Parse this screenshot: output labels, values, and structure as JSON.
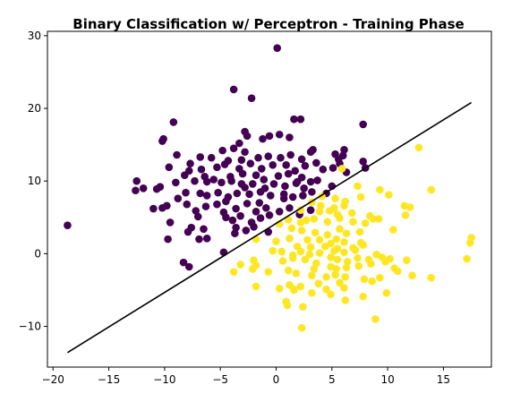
{
  "chart_data": {
    "type": "scatter",
    "title": "Binary Classification w/ Perceptron - Training Phase",
    "xlabel": "",
    "ylabel": "",
    "xlim": [
      -20.5,
      19.3
    ],
    "ylim": [
      -15.6,
      30.6
    ],
    "xticks": [
      -20,
      -15,
      -10,
      -5,
      0,
      5,
      10,
      15
    ],
    "yticks": [
      -10,
      0,
      10,
      20,
      30
    ],
    "grid": false,
    "legend": "none",
    "colors": {
      "class_0": "#440154",
      "class_1": "#fde725",
      "boundary": "#000000"
    },
    "decision_boundary": {
      "x": [
        -18.7,
        17.5
      ],
      "y": [
        -13.6,
        20.8
      ]
    },
    "series": [
      {
        "class": 0,
        "points": [
          [
            -18.7,
            3.9
          ],
          [
            0.1,
            28.3
          ],
          [
            -3.8,
            22.6
          ],
          [
            -2.2,
            21.4
          ],
          [
            1.6,
            18.5
          ],
          [
            2.2,
            18.5
          ],
          [
            7.8,
            17.8
          ],
          [
            -9.2,
            18.1
          ],
          [
            -10.2,
            15.5
          ],
          [
            -10.1,
            15.8
          ],
          [
            -2.8,
            16.8
          ],
          [
            -2.6,
            16.2
          ],
          [
            -1.2,
            15.8
          ],
          [
            -0.6,
            16.2
          ],
          [
            0.3,
            16.4
          ],
          [
            1.2,
            16.0
          ],
          [
            -3.3,
            15.2
          ],
          [
            -4.8,
            14.2
          ],
          [
            -3.8,
            14.5
          ],
          [
            -2.8,
            14.0
          ],
          [
            -8.9,
            13.6
          ],
          [
            -6.8,
            13.3
          ],
          [
            -5.8,
            13.2
          ],
          [
            -4.3,
            12.8
          ],
          [
            -3.1,
            12.9
          ],
          [
            -1.6,
            13.2
          ],
          [
            -0.7,
            13.4
          ],
          [
            0.4,
            13.2
          ],
          [
            1.3,
            13.6
          ],
          [
            2.3,
            13.0
          ],
          [
            3.1,
            14.0
          ],
          [
            3.3,
            14.3
          ],
          [
            5.6,
            13.0
          ],
          [
            6.1,
            14.3
          ],
          [
            5.3,
            13.7
          ],
          [
            6.0,
            13.5
          ],
          [
            -9.6,
            11.9
          ],
          [
            -7.7,
            12.4
          ],
          [
            -6.7,
            11.6
          ],
          [
            -5.3,
            11.9
          ],
          [
            -4.6,
            12.3
          ],
          [
            -3.3,
            11.7
          ],
          [
            -2.3,
            12.4
          ],
          [
            -1.3,
            11.7
          ],
          [
            -0.3,
            12.2
          ],
          [
            0.9,
            12.2
          ],
          [
            1.7,
            11.4
          ],
          [
            2.6,
            12.1
          ],
          [
            3.6,
            12.5
          ],
          [
            4.2,
            11.6
          ],
          [
            5.1,
            11.8
          ],
          [
            5.7,
            12.4
          ],
          [
            6.3,
            11.2
          ],
          [
            7.8,
            12.7
          ],
          [
            8.0,
            11.8
          ],
          [
            -7.8,
            11.4
          ],
          [
            -6.4,
            10.6
          ],
          [
            -4.1,
            10.6
          ],
          [
            -3.0,
            11.0
          ],
          [
            -1.8,
            10.8
          ],
          [
            -1.1,
            10.2
          ],
          [
            0.2,
            10.7
          ],
          [
            1.1,
            11.0
          ],
          [
            2.3,
            10.5
          ],
          [
            3.1,
            9.9
          ],
          [
            -8.2,
            10.8
          ],
          [
            -7.3,
            10.0
          ],
          [
            -6.2,
            9.9
          ],
          [
            -5.6,
            10.2
          ],
          [
            -4.9,
            9.8
          ],
          [
            -4.0,
            10.0
          ],
          [
            -3.1,
            9.6
          ],
          [
            -2.1,
            9.6
          ],
          [
            -1.0,
            9.0
          ],
          [
            -0.2,
            9.6
          ],
          [
            0.8,
            9.3
          ],
          [
            1.8,
            9.7
          ],
          [
            2.5,
            9.0
          ],
          [
            3.7,
            10.1
          ],
          [
            5.0,
            9.3
          ],
          [
            -11.9,
            9.0
          ],
          [
            -12.6,
            8.7
          ],
          [
            -12.5,
            10.0
          ],
          [
            -10.7,
            8.9
          ],
          [
            -10.4,
            9.2
          ],
          [
            -9.0,
            9.8
          ],
          [
            -8.1,
            8.4
          ],
          [
            -6.8,
            8.3
          ],
          [
            -6.2,
            8.0
          ],
          [
            -5.2,
            8.4
          ],
          [
            -4.3,
            7.8
          ],
          [
            -3.5,
            8.3
          ],
          [
            -2.4,
            8.2
          ],
          [
            -1.4,
            8.5
          ],
          [
            -0.5,
            8.0
          ],
          [
            0.7,
            8.2
          ],
          [
            1.5,
            7.8
          ],
          [
            2.4,
            8.0
          ],
          [
            3.2,
            8.5
          ],
          [
            4.5,
            8.3
          ],
          [
            -11.0,
            6.2
          ],
          [
            -10.2,
            6.3
          ],
          [
            -9.8,
            6.6
          ],
          [
            -8.0,
            6.8
          ],
          [
            -7.2,
            5.9
          ],
          [
            -6.3,
            6.5
          ],
          [
            -5.3,
            6.8
          ],
          [
            -4.7,
            5.7
          ],
          [
            -3.6,
            6.2
          ],
          [
            -2.6,
            6.9
          ],
          [
            -1.8,
            5.8
          ],
          [
            -0.9,
            6.3
          ],
          [
            0.3,
            5.8
          ],
          [
            1.2,
            6.3
          ],
          [
            2.1,
            5.4
          ],
          [
            3.1,
            6.0
          ],
          [
            -7.0,
            5.1
          ],
          [
            -4.5,
            5.0
          ],
          [
            -3.9,
            4.6
          ],
          [
            -3.2,
            5.2
          ],
          [
            -2.2,
            4.3
          ],
          [
            -1.4,
            4.9
          ],
          [
            -0.6,
            5.3
          ],
          [
            -9.5,
            4.3
          ],
          [
            -7.6,
            3.6
          ],
          [
            -6.5,
            3.4
          ],
          [
            -3.6,
            3.6
          ],
          [
            -2.0,
            3.7
          ],
          [
            -0.7,
            3.0
          ],
          [
            -9.7,
            2.0
          ],
          [
            -7.9,
            3.0
          ],
          [
            -6.9,
            2.0
          ],
          [
            -6.2,
            2.1
          ],
          [
            -3.7,
            2.8
          ],
          [
            -4.7,
            0.2
          ],
          [
            -2.7,
            3.2
          ],
          [
            -8.3,
            -1.2
          ],
          [
            -7.8,
            -1.8
          ],
          [
            -8.8,
            7.6
          ],
          [
            -4.5,
            7.2
          ],
          [
            -1.5,
            7.0
          ],
          [
            0.7,
            7.6
          ],
          [
            -2.8,
            9.1
          ],
          [
            1.9,
            9.9
          ]
        ]
      },
      {
        "class": 1,
        "points": [
          [
            12.8,
            14.6
          ],
          [
            5.9,
            11.7
          ],
          [
            7.3,
            9.3
          ],
          [
            9.3,
            8.8
          ],
          [
            10.1,
            8.1
          ],
          [
            13.9,
            8.8
          ],
          [
            4.1,
            7.9
          ],
          [
            5.3,
            7.6
          ],
          [
            6.2,
            7.2
          ],
          [
            7.6,
            7.8
          ],
          [
            3.2,
            7.1
          ],
          [
            4.0,
            6.6
          ],
          [
            5.2,
            6.3
          ],
          [
            6.1,
            6.6
          ],
          [
            11.5,
            6.6
          ],
          [
            12.0,
            6.4
          ],
          [
            2.2,
            6.0
          ],
          [
            3.9,
            5.8
          ],
          [
            5.5,
            5.4
          ],
          [
            6.8,
            5.6
          ],
          [
            8.4,
            5.2
          ],
          [
            9.2,
            4.8
          ],
          [
            11.6,
            5.3
          ],
          [
            1.1,
            4.7
          ],
          [
            2.2,
            4.3
          ],
          [
            3.4,
            4.8
          ],
          [
            4.6,
            4.4
          ],
          [
            5.7,
            4.9
          ],
          [
            6.9,
            4.4
          ],
          [
            8.0,
            4.2
          ],
          [
            8.7,
            4.8
          ],
          [
            0.3,
            4.1
          ],
          [
            1.4,
            3.5
          ],
          [
            2.3,
            3.2
          ],
          [
            3.5,
            2.9
          ],
          [
            4.6,
            2.6
          ],
          [
            5.7,
            3.4
          ],
          [
            6.3,
            2.8
          ],
          [
            7.5,
            3.0
          ],
          [
            10.5,
            3.3
          ],
          [
            -1.8,
            2.0
          ],
          [
            1.2,
            2.1
          ],
          [
            2.8,
            1.9
          ],
          [
            3.9,
            1.9
          ],
          [
            4.9,
            1.4
          ],
          [
            5.4,
            2.0
          ],
          [
            6.1,
            1.6
          ],
          [
            7.6,
            1.5
          ],
          [
            17.5,
            2.2
          ],
          [
            17.4,
            1.5
          ],
          [
            0.0,
            1.7
          ],
          [
            1.9,
            1.0
          ],
          [
            3.1,
            0.9
          ],
          [
            4.4,
            1.0
          ],
          [
            5.5,
            0.7
          ],
          [
            6.9,
            0.8
          ],
          [
            7.8,
            1.2
          ],
          [
            -0.3,
            0.4
          ],
          [
            0.5,
            0.3
          ],
          [
            1.5,
            -0.2
          ],
          [
            2.2,
            0.3
          ],
          [
            3.0,
            -0.1
          ],
          [
            3.9,
            0.1
          ],
          [
            5.2,
            0.4
          ],
          [
            6.1,
            0.2
          ],
          [
            7.1,
            0.5
          ],
          [
            -2.0,
            -0.9
          ],
          [
            -1.8,
            -1.6
          ],
          [
            0.6,
            -1.0
          ],
          [
            1.5,
            -0.6
          ],
          [
            2.6,
            -0.8
          ],
          [
            3.6,
            -1.3
          ],
          [
            4.9,
            -0.5
          ],
          [
            5.5,
            -0.8
          ],
          [
            6.4,
            -1.1
          ],
          [
            7.3,
            -0.6
          ],
          [
            8.3,
            -0.8
          ],
          [
            9.5,
            -0.5
          ],
          [
            10.2,
            -0.7
          ],
          [
            11.7,
            -0.9
          ],
          [
            9.0,
            -0.1
          ],
          [
            -3.2,
            -1.5
          ],
          [
            -2.1,
            -2.1
          ],
          [
            1.1,
            -2.3
          ],
          [
            3.4,
            -2.1
          ],
          [
            4.9,
            -1.8
          ],
          [
            5.4,
            -2.1
          ],
          [
            6.3,
            -1.9
          ],
          [
            7.4,
            -1.7
          ],
          [
            8.5,
            -1.4
          ],
          [
            9.8,
            -1.1
          ],
          [
            10.6,
            -2.0
          ],
          [
            10.9,
            -2.4
          ],
          [
            -3.8,
            -2.5
          ],
          [
            -0.7,
            -2.5
          ],
          [
            1.8,
            -2.7
          ],
          [
            3.2,
            -3.0
          ],
          [
            4.5,
            -3.2
          ],
          [
            5.3,
            -2.9
          ],
          [
            6.2,
            -3.2
          ],
          [
            7.9,
            -3.5
          ],
          [
            8.6,
            -3.8
          ],
          [
            9.3,
            -3.3
          ],
          [
            12.2,
            -3.0
          ],
          [
            13.9,
            -3.3
          ],
          [
            17.1,
            -0.7
          ],
          [
            -1.8,
            -4.5
          ],
          [
            0.3,
            -4.8
          ],
          [
            1.2,
            -4.3
          ],
          [
            1.6,
            -4.9
          ],
          [
            2.2,
            -4.5
          ],
          [
            3.8,
            -4.1
          ],
          [
            4.5,
            -4.9
          ],
          [
            5.7,
            -4.0
          ],
          [
            6.1,
            -4.7
          ],
          [
            3.2,
            -5.4
          ],
          [
            4.9,
            -5.6
          ],
          [
            7.8,
            -5.9
          ],
          [
            9.9,
            -5.4
          ],
          [
            1.0,
            -7.1
          ],
          [
            2.4,
            -7.3
          ],
          [
            6.2,
            -6.4
          ],
          [
            8.9,
            -9.0
          ],
          [
            2.3,
            -10.2
          ],
          [
            1.6,
            -5.0
          ],
          [
            0.9,
            -6.6
          ],
          [
            2.7,
            4.6
          ],
          [
            4.8,
            5.9
          ]
        ]
      }
    ]
  }
}
